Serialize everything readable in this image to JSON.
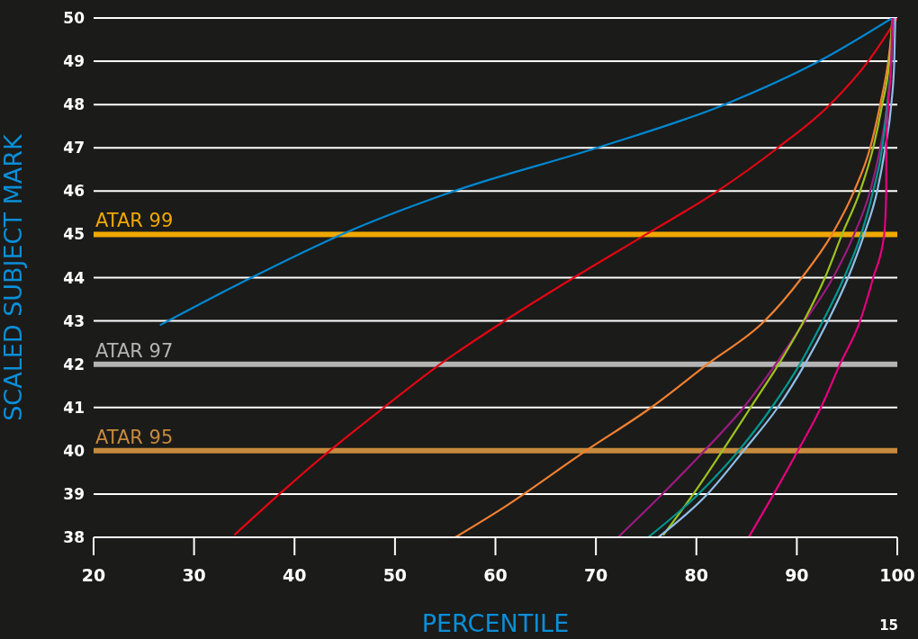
{
  "chart_data": {
    "type": "line",
    "xlabel": "PERCENTILE",
    "ylabel": "SCALED SUBJECT MARK",
    "xlim": [
      20,
      100
    ],
    "xticks": [
      20,
      30,
      40,
      50,
      60,
      70,
      80,
      90,
      100
    ],
    "ylim": [
      38,
      50
    ],
    "yticks": [
      38,
      39,
      40,
      41,
      42,
      43,
      44,
      45,
      46,
      47,
      48,
      49,
      50
    ],
    "grid": "y",
    "marker": "none",
    "line_style": "solid",
    "series": [
      {
        "color": "#0088d1",
        "x": [
          26.6,
          35.7,
          44.7,
          55.9,
          70.1,
          82.8,
          92.2,
          99.5
        ],
        "values": [
          42.9,
          44,
          45,
          46,
          47,
          48,
          49,
          50
        ]
      },
      {
        "color": "#e30613",
        "x": [
          34,
          38.5,
          43.5,
          48.9,
          54.5,
          60.9,
          67.8,
          75,
          82.1,
          88.1,
          93.3,
          97.1,
          100
        ],
        "values": [
          38.05,
          39,
          40,
          41,
          42,
          43,
          44,
          45,
          46,
          47,
          48,
          49,
          50
        ]
      },
      {
        "color": "#f08030",
        "x": [
          56,
          60.9,
          69,
          75.5,
          81.1,
          86.8,
          90.5,
          93.5,
          95.7,
          97.3,
          98.3,
          99.1,
          99.6
        ],
        "values": [
          38,
          38.7,
          40,
          41,
          42,
          43,
          44,
          45,
          46,
          47,
          48,
          49,
          50
        ]
      },
      {
        "color": "#9b1b80",
        "x": [
          72.2,
          76.6,
          80.8,
          84.7,
          87.9,
          90.8,
          93.6,
          95.7,
          97.3,
          98.3,
          99,
          99.4,
          99.5
        ],
        "values": [
          38,
          39,
          40,
          41,
          42,
          43,
          44,
          45,
          46,
          47,
          48,
          49,
          50
        ]
      },
      {
        "color": "#9dc31c",
        "x": [
          76.7,
          79.7,
          82.6,
          85.4,
          88.2,
          90.7,
          92.8,
          94.5,
          96.3,
          97.6,
          98.5,
          99.2,
          99.5
        ],
        "values": [
          38.05,
          39,
          40,
          41,
          42,
          43,
          44,
          45,
          46,
          47,
          48,
          49,
          50
        ]
      },
      {
        "color": "#00968f",
        "x": [
          75.2,
          80.2,
          84.2,
          87.5,
          90.3,
          92.6,
          94.7,
          96.4,
          97.6,
          98.5,
          99,
          99.4,
          99.6
        ],
        "values": [
          38,
          39,
          40,
          41,
          42,
          43,
          44,
          45,
          46,
          47,
          48,
          49,
          50
        ]
      },
      {
        "color": "#8fbfe8",
        "x": [
          76.2,
          81.1,
          84.7,
          88.1,
          90.8,
          93.1,
          95.1,
          96.7,
          98,
          98.8,
          99.4,
          99.7,
          99.8
        ],
        "values": [
          38,
          39,
          40,
          41,
          42,
          43,
          44,
          45,
          46,
          47,
          48,
          49,
          50
        ]
      },
      {
        "color": "#e5007e",
        "x": [
          85.2,
          87.7,
          90.1,
          92.4,
          94.3,
          96.3,
          97.6,
          98.7,
          98.9,
          98.9,
          99.1,
          99.4,
          99.5
        ],
        "values": [
          38,
          39,
          40,
          41,
          42,
          43,
          44,
          45,
          46,
          47,
          48,
          49,
          50
        ]
      }
    ],
    "ref_lines": [
      {
        "axis": "y",
        "value": 45,
        "label": "ATAR 99",
        "color": "#f0a800"
      },
      {
        "axis": "y",
        "value": 42,
        "label": "ATAR 97",
        "color": "#b4b4b4"
      },
      {
        "axis": "y",
        "value": 40,
        "label": "ATAR 95",
        "color": "#c68a3c"
      }
    ],
    "annotations": [
      "15"
    ]
  }
}
